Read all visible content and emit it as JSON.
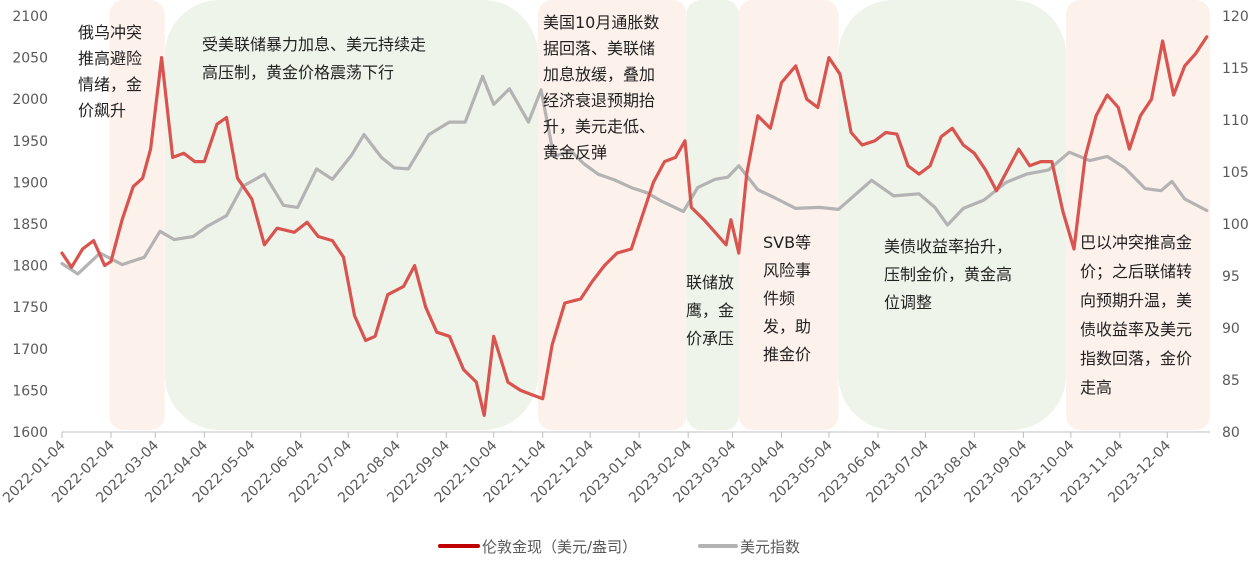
{
  "chart_data": {
    "type": "line",
    "title": "",
    "xlabel": "",
    "ylabel": "",
    "x_ticks": [
      "2022-01-04",
      "2022-02-04",
      "2022-03-04",
      "2022-04-04",
      "2022-05-04",
      "2022-06-04",
      "2022-07-04",
      "2022-08-04",
      "2022-09-04",
      "2022-10-04",
      "2022-11-04",
      "2022-12-04",
      "2023-01-04",
      "2023-02-04",
      "2023-03-04",
      "2023-04-04",
      "2023-05-04",
      "2023-06-04",
      "2023-07-04",
      "2023-08-04",
      "2023-09-04",
      "2023-10-04",
      "2023-11-04",
      "2023-12-04"
    ],
    "y_left": {
      "min": 1600,
      "max": 2100,
      "ticks": [
        "1600",
        "1650",
        "1700",
        "1750",
        "1800",
        "1850",
        "1900",
        "1950",
        "2000",
        "2050",
        "2100"
      ]
    },
    "y_right": {
      "min": 80,
      "max": 120,
      "ticks": [
        "80",
        "85",
        "90",
        "95",
        "100",
        "105",
        "110",
        "115",
        "120"
      ]
    },
    "grid": false,
    "legend_position": "bottom",
    "series": [
      {
        "name": "伦敦金现（美元/盎司）",
        "axis": "left",
        "color": "#c00000",
        "points": [
          [
            "2022-01-04",
            1815
          ],
          [
            "2022-01-10",
            1798
          ],
          [
            "2022-01-17",
            1820
          ],
          [
            "2022-01-24",
            1830
          ],
          [
            "2022-01-31",
            1800
          ],
          [
            "2022-02-04",
            1805
          ],
          [
            "2022-02-11",
            1855
          ],
          [
            "2022-02-18",
            1895
          ],
          [
            "2022-02-24",
            1905
          ],
          [
            "2022-03-01",
            1940
          ],
          [
            "2022-03-08",
            2050
          ],
          [
            "2022-03-15",
            1930
          ],
          [
            "2022-03-22",
            1935
          ],
          [
            "2022-03-29",
            1925
          ],
          [
            "2022-04-04",
            1925
          ],
          [
            "2022-04-12",
            1970
          ],
          [
            "2022-04-18",
            1978
          ],
          [
            "2022-04-25",
            1905
          ],
          [
            "2022-05-04",
            1880
          ],
          [
            "2022-05-12",
            1825
          ],
          [
            "2022-05-20",
            1845
          ],
          [
            "2022-05-31",
            1840
          ],
          [
            "2022-06-08",
            1852
          ],
          [
            "2022-06-15",
            1835
          ],
          [
            "2022-06-24",
            1830
          ],
          [
            "2022-07-01",
            1810
          ],
          [
            "2022-07-08",
            1740
          ],
          [
            "2022-07-15",
            1710
          ],
          [
            "2022-07-21",
            1715
          ],
          [
            "2022-07-29",
            1765
          ],
          [
            "2022-08-08",
            1775
          ],
          [
            "2022-08-15",
            1800
          ],
          [
            "2022-08-22",
            1750
          ],
          [
            "2022-08-29",
            1720
          ],
          [
            "2022-09-06",
            1715
          ],
          [
            "2022-09-15",
            1675
          ],
          [
            "2022-09-23",
            1660
          ],
          [
            "2022-09-28",
            1620
          ],
          [
            "2022-10-04",
            1715
          ],
          [
            "2022-10-13",
            1660
          ],
          [
            "2022-10-21",
            1650
          ],
          [
            "2022-10-28",
            1645
          ],
          [
            "2022-11-04",
            1640
          ],
          [
            "2022-11-10",
            1705
          ],
          [
            "2022-11-18",
            1755
          ],
          [
            "2022-11-28",
            1760
          ],
          [
            "2022-12-05",
            1780
          ],
          [
            "2022-12-13",
            1800
          ],
          [
            "2022-12-21",
            1815
          ],
          [
            "2022-12-30",
            1820
          ],
          [
            "2023-01-06",
            1860
          ],
          [
            "2023-01-13",
            1900
          ],
          [
            "2023-01-20",
            1925
          ],
          [
            "2023-01-27",
            1930
          ],
          [
            "2023-02-02",
            1950
          ],
          [
            "2023-02-06",
            1870
          ],
          [
            "2023-02-14",
            1855
          ],
          [
            "2023-02-21",
            1840
          ],
          [
            "2023-02-28",
            1825
          ],
          [
            "2023-03-03",
            1855
          ],
          [
            "2023-03-08",
            1815
          ],
          [
            "2023-03-13",
            1910
          ],
          [
            "2023-03-20",
            1980
          ],
          [
            "2023-03-28",
            1965
          ],
          [
            "2023-04-04",
            2020
          ],
          [
            "2023-04-13",
            2040
          ],
          [
            "2023-04-20",
            2000
          ],
          [
            "2023-04-27",
            1990
          ],
          [
            "2023-05-04",
            2050
          ],
          [
            "2023-05-11",
            2030
          ],
          [
            "2023-05-18",
            1960
          ],
          [
            "2023-05-25",
            1945
          ],
          [
            "2023-06-02",
            1950
          ],
          [
            "2023-06-09",
            1960
          ],
          [
            "2023-06-16",
            1958
          ],
          [
            "2023-06-23",
            1920
          ],
          [
            "2023-06-30",
            1910
          ],
          [
            "2023-07-07",
            1920
          ],
          [
            "2023-07-14",
            1955
          ],
          [
            "2023-07-21",
            1965
          ],
          [
            "2023-07-28",
            1945
          ],
          [
            "2023-08-04",
            1935
          ],
          [
            "2023-08-11",
            1915
          ],
          [
            "2023-08-18",
            1890
          ],
          [
            "2023-08-25",
            1915
          ],
          [
            "2023-09-01",
            1940
          ],
          [
            "2023-09-08",
            1920
          ],
          [
            "2023-09-15",
            1925
          ],
          [
            "2023-09-22",
            1925
          ],
          [
            "2023-09-29",
            1865
          ],
          [
            "2023-10-06",
            1820
          ],
          [
            "2023-10-13",
            1930
          ],
          [
            "2023-10-20",
            1980
          ],
          [
            "2023-10-27",
            2005
          ],
          [
            "2023-11-03",
            1990
          ],
          [
            "2023-11-10",
            1940
          ],
          [
            "2023-11-17",
            1980
          ],
          [
            "2023-11-24",
            2000
          ],
          [
            "2023-12-01",
            2070
          ],
          [
            "2023-12-08",
            2005
          ],
          [
            "2023-12-15",
            2040
          ],
          [
            "2023-12-22",
            2055
          ],
          [
            "2023-12-29",
            2075
          ]
        ]
      },
      {
        "name": "美元指数",
        "axis": "right",
        "color": "#b3b3b3",
        "points": [
          [
            "2022-01-04",
            96.2
          ],
          [
            "2022-01-14",
            95.2
          ],
          [
            "2022-01-28",
            97.2
          ],
          [
            "2022-02-11",
            96.1
          ],
          [
            "2022-02-25",
            96.8
          ],
          [
            "2022-03-07",
            99.3
          ],
          [
            "2022-03-16",
            98.5
          ],
          [
            "2022-03-28",
            98.8
          ],
          [
            "2022-04-06",
            99.8
          ],
          [
            "2022-04-18",
            100.8
          ],
          [
            "2022-04-28",
            103.6
          ],
          [
            "2022-05-12",
            104.8
          ],
          [
            "2022-05-24",
            101.8
          ],
          [
            "2022-06-02",
            101.6
          ],
          [
            "2022-06-14",
            105.3
          ],
          [
            "2022-06-24",
            104.3
          ],
          [
            "2022-07-06",
            106.6
          ],
          [
            "2022-07-14",
            108.6
          ],
          [
            "2022-07-25",
            106.4
          ],
          [
            "2022-08-02",
            105.4
          ],
          [
            "2022-08-11",
            105.3
          ],
          [
            "2022-08-24",
            108.6
          ],
          [
            "2022-09-06",
            109.8
          ],
          [
            "2022-09-16",
            109.8
          ],
          [
            "2022-09-27",
            114.2
          ],
          [
            "2022-10-04",
            111.5
          ],
          [
            "2022-10-14",
            113.0
          ],
          [
            "2022-10-26",
            109.8
          ],
          [
            "2022-11-03",
            112.9
          ],
          [
            "2022-11-11",
            106.5
          ],
          [
            "2022-11-22",
            107.0
          ],
          [
            "2022-11-30",
            105.8
          ],
          [
            "2022-12-09",
            104.8
          ],
          [
            "2022-12-20",
            104.2
          ],
          [
            "2022-12-30",
            103.5
          ],
          [
            "2023-01-09",
            103.0
          ],
          [
            "2023-01-18",
            102.2
          ],
          [
            "2023-02-01",
            101.2
          ],
          [
            "2023-02-10",
            103.5
          ],
          [
            "2023-02-21",
            104.3
          ],
          [
            "2023-03-01",
            104.5
          ],
          [
            "2023-03-08",
            105.6
          ],
          [
            "2023-03-20",
            103.3
          ],
          [
            "2023-03-31",
            102.5
          ],
          [
            "2023-04-13",
            101.5
          ],
          [
            "2023-04-28",
            101.6
          ],
          [
            "2023-05-10",
            101.4
          ],
          [
            "2023-05-31",
            104.2
          ],
          [
            "2023-06-14",
            102.7
          ],
          [
            "2023-06-30",
            102.9
          ],
          [
            "2023-07-10",
            101.6
          ],
          [
            "2023-07-18",
            99.9
          ],
          [
            "2023-07-28",
            101.5
          ],
          [
            "2023-08-10",
            102.3
          ],
          [
            "2023-08-24",
            104.0
          ],
          [
            "2023-09-06",
            104.8
          ],
          [
            "2023-09-20",
            105.2
          ],
          [
            "2023-10-03",
            106.9
          ],
          [
            "2023-10-16",
            106.1
          ],
          [
            "2023-10-27",
            106.5
          ],
          [
            "2023-11-07",
            105.4
          ],
          [
            "2023-11-20",
            103.4
          ],
          [
            "2023-11-30",
            103.2
          ],
          [
            "2023-12-07",
            104.1
          ],
          [
            "2023-12-15",
            102.4
          ],
          [
            "2023-12-29",
            101.3
          ]
        ]
      }
    ],
    "shaded_periods": [
      {
        "start": "2022-02-03",
        "end": "2022-03-10",
        "color": "#fdf1ec",
        "text": "俄乌冲突推高避险情绪，金价飙升",
        "lines": [
          "俄乌冲突",
          "推高避险",
          "情绪，金",
          "价飙升"
        ]
      },
      {
        "start": "2022-03-10",
        "end": "2022-11-01",
        "color": "#eef4ea",
        "text": "受美联储暴力加息、美元持续走高压制，黄金价格震荡下行",
        "lines": [
          "受美联储暴力加息、美元持续走",
          "高压制，黄金价格震荡下行"
        ]
      },
      {
        "start": "2022-11-01",
        "end": "2023-02-03",
        "color": "#fdf1ec",
        "text": "美国10月通胀数据回落、美联储加息放缓，叠加经济衰退预期抬升，美元走低、黄金反弹",
        "lines": [
          "美国10月通胀数",
          "据回落、美联储",
          "加息放缓，叠加",
          "经济衰退预期抬",
          "升，美元走低、",
          "黄金反弹"
        ]
      },
      {
        "start": "2023-02-03",
        "end": "2023-03-08",
        "color": "#eef4ea",
        "text": "联储放鹰，金价承压",
        "lines": [
          "联储放",
          "鹰，金",
          "价承压"
        ]
      },
      {
        "start": "2023-03-08",
        "end": "2023-05-10",
        "color": "#fdf1ec",
        "text": "SVB等风险事件频发，助推金价",
        "lines": [
          "SVB等",
          "风险事",
          "件频",
          "发，助",
          "推金价"
        ]
      },
      {
        "start": "2023-05-10",
        "end": "2023-10-01",
        "color": "#eef4ea",
        "text": "美债收益率抬升，压制金价，黄金高位调整",
        "lines": [
          "美债收益率抬升，",
          "压制金价，黄金高",
          "位调整"
        ]
      },
      {
        "start": "2023-10-01",
        "end": "2023-12-31",
        "color": "#fdf1ec",
        "text": "巴以冲突推高金价；之后联储转向预期升温，美债收益率及美元指数回落，金价走高",
        "lines": [
          "巴以冲突推高金",
          "价；之后联储转",
          "向预期升温，美",
          "债收益率及美元",
          "指数回落，金价",
          "走高"
        ]
      }
    ]
  }
}
